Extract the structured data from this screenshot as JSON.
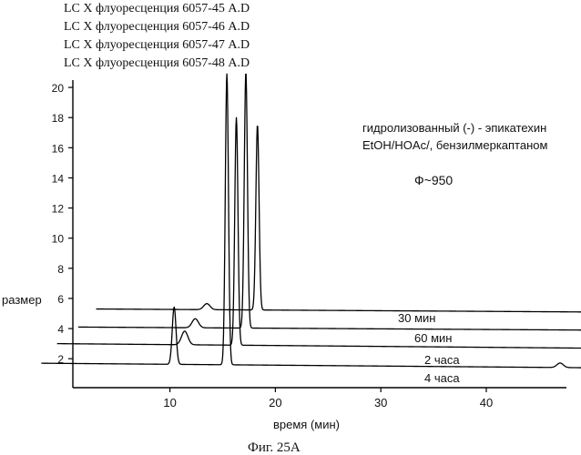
{
  "chart_data": {
    "type": "line",
    "title_lines": [
      "LC X флуоресценция 6057-45 A.D",
      "LC X флуоресценция 6057-46 A.D",
      "LC X флуоресценция 6057-47 A.D",
      "LC X флуоресценция 6057-48 A.D"
    ],
    "annotation_lines": [
      "гидролизованный (-) - эпикатехин",
      "EtOH/HOAc/, бензилмеркаптаном"
    ],
    "annotation_symbol": "Ф~950",
    "ylabel": "размер",
    "xlabel": "время (мин)",
    "caption": "Фиг. 25А",
    "xlim": [
      0,
      50
    ],
    "ylim": [
      1.5,
      20.8
    ],
    "x_ticks": [
      "10",
      "20",
      "30",
      "40"
    ],
    "x_tick_values": [
      10,
      20,
      30,
      40
    ],
    "y_ticks": [
      "20",
      "18",
      "16",
      "14",
      "12",
      "10",
      "8",
      "6",
      "4",
      "2"
    ],
    "y_tick_values": [
      20,
      18,
      16,
      14,
      12,
      10,
      8,
      6,
      4,
      2
    ],
    "grid": false,
    "series": [
      {
        "name": "30 мин",
        "x_start": 3.0,
        "x_end": 49.5,
        "baseline": 5.3,
        "baseline_end": 5.1,
        "peaks": [
          {
            "x": 13.5,
            "height": 0.4,
            "width": 0.3
          },
          {
            "x": 18.3,
            "height": 12.3,
            "width": 0.15
          }
        ]
      },
      {
        "name": "60 мин",
        "x_start": 1.3,
        "x_end": 49.5,
        "baseline": 4.1,
        "baseline_end": 3.9,
        "peaks": [
          {
            "x": 12.4,
            "height": 0.6,
            "width": 0.3
          },
          {
            "x": 17.2,
            "height": 17.0,
            "width": 0.15
          }
        ]
      },
      {
        "name": "2 часа",
        "x_start": -0.7,
        "x_end": 49.5,
        "baseline": 3.0,
        "baseline_end": 2.7,
        "peaks": [
          {
            "x": 11.4,
            "height": 0.9,
            "width": 0.3
          },
          {
            "x": 16.3,
            "height": 15.1,
            "width": 0.15
          }
        ]
      },
      {
        "name": "4 часа",
        "x_start": -2.2,
        "x_end": 49.5,
        "baseline": 1.7,
        "baseline_end": 1.4,
        "peaks": [
          {
            "x": 10.4,
            "height": 3.8,
            "width": 0.18
          },
          {
            "x": 15.4,
            "height": 19.3,
            "width": 0.15
          },
          {
            "x": 47.0,
            "height": 0.3,
            "width": 0.3
          }
        ]
      }
    ]
  }
}
